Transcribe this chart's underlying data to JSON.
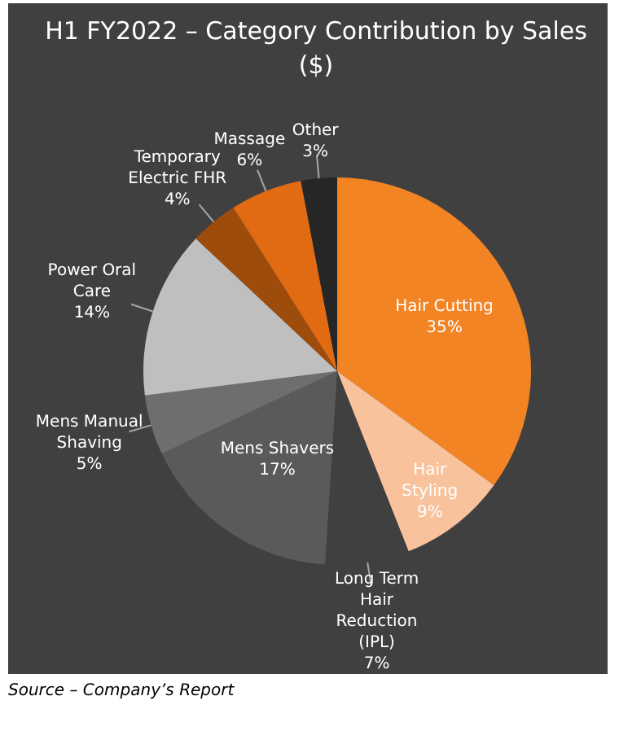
{
  "chart_data": {
    "type": "pie",
    "title": "H1 FY2022 – Category Contribution by Sales ($)",
    "categories": [
      "Hair Cutting",
      "Hair Styling",
      "Long Term Hair Reduction (IPL)",
      "Mens Shavers",
      "Mens Manual Shaving",
      "Power Oral Care",
      "Temporary Electric FHR",
      "Massage",
      "Other"
    ],
    "values": [
      35,
      9,
      7,
      17,
      5,
      14,
      4,
      6,
      3
    ],
    "value_labels": [
      "35%",
      "9%",
      "7%",
      "17%",
      "5%",
      "14%",
      "4%",
      "6%",
      "3%"
    ],
    "colors": [
      "#f28424",
      "#f8c29c",
      "#404040",
      "#5a5a5a",
      "#6e6e6e",
      "#bfbfbf",
      "#9e4c0c",
      "#e06b12",
      "#262626"
    ],
    "legend": false,
    "annotations": [
      "Source – Company’s Report"
    ]
  }
}
